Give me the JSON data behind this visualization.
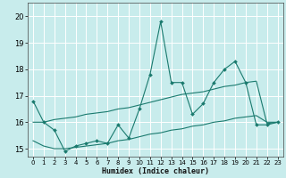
{
  "title": "",
  "xlabel": "Humidex (Indice chaleur)",
  "bg_color": "#c8ecec",
  "grid_color": "#ffffff",
  "line_color": "#1a7a6e",
  "xlim": [
    -0.5,
    23.5
  ],
  "ylim": [
    14.7,
    20.5
  ],
  "yticks": [
    15,
    16,
    17,
    18,
    19,
    20
  ],
  "xticks": [
    0,
    1,
    2,
    3,
    4,
    5,
    6,
    7,
    8,
    9,
    10,
    11,
    12,
    13,
    14,
    15,
    16,
    17,
    18,
    19,
    20,
    21,
    22,
    23
  ],
  "line1_x": [
    0,
    1,
    2,
    3,
    4,
    5,
    6,
    7,
    8,
    9,
    10,
    11,
    12,
    13,
    14,
    15,
    16,
    17,
    18,
    19,
    20,
    21,
    22,
    23
  ],
  "line1_y": [
    16.8,
    16.0,
    15.7,
    14.9,
    15.1,
    15.2,
    15.3,
    15.2,
    15.9,
    15.4,
    16.5,
    17.8,
    19.8,
    17.5,
    17.5,
    16.3,
    16.7,
    17.5,
    18.0,
    18.3,
    17.5,
    15.9,
    15.9,
    16.0
  ],
  "line2_x": [
    0,
    1,
    2,
    3,
    4,
    5,
    6,
    7,
    8,
    9,
    10,
    11,
    12,
    13,
    14,
    15,
    16,
    17,
    18,
    19,
    20,
    21,
    22,
    23
  ],
  "line2_y": [
    16.0,
    16.0,
    16.1,
    16.15,
    16.2,
    16.3,
    16.35,
    16.4,
    16.5,
    16.55,
    16.65,
    16.75,
    16.85,
    16.95,
    17.05,
    17.1,
    17.15,
    17.25,
    17.35,
    17.4,
    17.5,
    17.55,
    15.95,
    16.0
  ],
  "line3_x": [
    0,
    1,
    2,
    3,
    4,
    5,
    6,
    7,
    8,
    9,
    10,
    11,
    12,
    13,
    14,
    15,
    16,
    17,
    18,
    19,
    20,
    21,
    22,
    23
  ],
  "line3_y": [
    15.3,
    15.1,
    15.0,
    15.0,
    15.05,
    15.1,
    15.15,
    15.2,
    15.3,
    15.35,
    15.45,
    15.55,
    15.6,
    15.7,
    15.75,
    15.85,
    15.9,
    16.0,
    16.05,
    16.15,
    16.2,
    16.25,
    16.0,
    16.0
  ],
  "xlabel_fontsize": 6,
  "ytick_fontsize": 6,
  "xtick_fontsize": 5
}
